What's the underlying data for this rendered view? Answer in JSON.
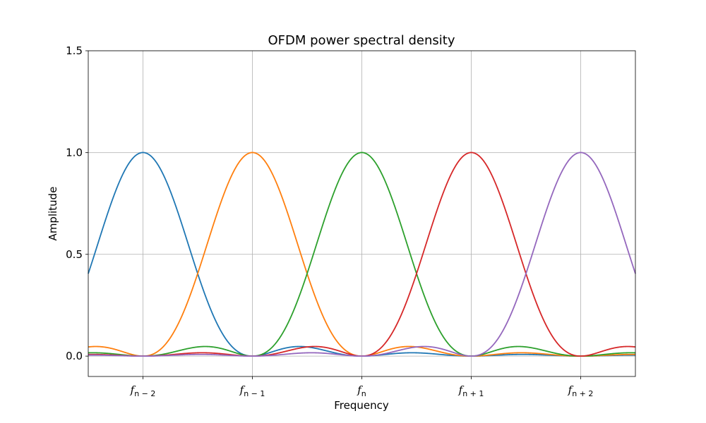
{
  "chart_data": {
    "type": "line",
    "title": "OFDM power spectral density",
    "xlabel": "Frequency",
    "ylabel": "Amplitude",
    "xlim": [
      -2.5,
      2.5
    ],
    "ylim": [
      -0.1,
      1.5
    ],
    "grid": true,
    "x_ticks": [
      {
        "value": -2,
        "base": "f",
        "sub": "n − 2"
      },
      {
        "value": -1,
        "base": "f",
        "sub": "n − 1"
      },
      {
        "value": 0,
        "base": "f",
        "sub": "n"
      },
      {
        "value": 1,
        "base": "f",
        "sub": "n + 1"
      },
      {
        "value": 2,
        "base": "f",
        "sub": "n + 2"
      }
    ],
    "y_ticks": [
      {
        "value": 0.0,
        "label": "0.0"
      },
      {
        "value": 0.5,
        "label": "0.5"
      },
      {
        "value": 1.0,
        "label": "1.0"
      },
      {
        "value": 1.5,
        "label": "1.5"
      }
    ],
    "series_function": "sinc_squared",
    "series": [
      {
        "center": -2,
        "color": "#1f77b4"
      },
      {
        "center": -1,
        "color": "#ff7f0e"
      },
      {
        "center": 0,
        "color": "#2ca02c"
      },
      {
        "center": 1,
        "color": "#d62728"
      },
      {
        "center": 2,
        "color": "#9467bd"
      }
    ]
  }
}
